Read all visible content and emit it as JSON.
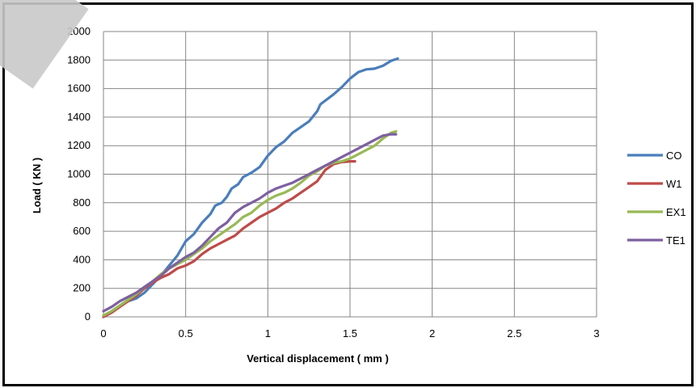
{
  "chart_data": {
    "type": "line",
    "xlabel": "Vertical displacement ( mm )",
    "ylabel": "Load ( KN )",
    "xlim": [
      0,
      3
    ],
    "ylim": [
      0,
      2000
    ],
    "xticks": [
      "0",
      "0.5",
      "1",
      "1.5",
      "2",
      "2.5",
      "3"
    ],
    "yticks": [
      "0",
      "200",
      "400",
      "600",
      "800",
      "1000",
      "1200",
      "1400",
      "1600",
      "1800",
      "2000"
    ],
    "grid": true,
    "legend_position": "right",
    "series": [
      {
        "name": "CO",
        "color": "#4a7ebb",
        "points": [
          [
            0,
            0
          ],
          [
            0.05,
            40
          ],
          [
            0.1,
            80
          ],
          [
            0.15,
            110
          ],
          [
            0.2,
            130
          ],
          [
            0.25,
            170
          ],
          [
            0.3,
            230
          ],
          [
            0.35,
            290
          ],
          [
            0.4,
            360
          ],
          [
            0.45,
            430
          ],
          [
            0.48,
            490
          ],
          [
            0.5,
            530
          ],
          [
            0.52,
            550
          ],
          [
            0.55,
            580
          ],
          [
            0.6,
            660
          ],
          [
            0.65,
            720
          ],
          [
            0.68,
            780
          ],
          [
            0.72,
            800
          ],
          [
            0.75,
            840
          ],
          [
            0.78,
            900
          ],
          [
            0.82,
            930
          ],
          [
            0.85,
            980
          ],
          [
            0.9,
            1010
          ],
          [
            0.95,
            1050
          ],
          [
            1.0,
            1130
          ],
          [
            1.05,
            1190
          ],
          [
            1.1,
            1230
          ],
          [
            1.15,
            1290
          ],
          [
            1.2,
            1330
          ],
          [
            1.25,
            1370
          ],
          [
            1.3,
            1440
          ],
          [
            1.32,
            1490
          ],
          [
            1.4,
            1560
          ],
          [
            1.45,
            1610
          ],
          [
            1.5,
            1670
          ],
          [
            1.55,
            1715
          ],
          [
            1.6,
            1735
          ],
          [
            1.65,
            1740
          ],
          [
            1.7,
            1760
          ],
          [
            1.75,
            1795
          ],
          [
            1.79,
            1810
          ]
        ]
      },
      {
        "name": "W1",
        "color": "#be4b48",
        "points": [
          [
            0,
            0
          ],
          [
            0.05,
            30
          ],
          [
            0.1,
            70
          ],
          [
            0.15,
            110
          ],
          [
            0.2,
            150
          ],
          [
            0.25,
            200
          ],
          [
            0.3,
            240
          ],
          [
            0.35,
            275
          ],
          [
            0.4,
            300
          ],
          [
            0.45,
            340
          ],
          [
            0.5,
            360
          ],
          [
            0.55,
            390
          ],
          [
            0.6,
            440
          ],
          [
            0.65,
            480
          ],
          [
            0.7,
            510
          ],
          [
            0.75,
            540
          ],
          [
            0.8,
            570
          ],
          [
            0.85,
            620
          ],
          [
            0.9,
            660
          ],
          [
            0.95,
            700
          ],
          [
            1.0,
            730
          ],
          [
            1.05,
            760
          ],
          [
            1.1,
            800
          ],
          [
            1.15,
            830
          ],
          [
            1.2,
            870
          ],
          [
            1.25,
            910
          ],
          [
            1.3,
            950
          ],
          [
            1.35,
            1030
          ],
          [
            1.4,
            1070
          ],
          [
            1.45,
            1085
          ],
          [
            1.5,
            1090
          ],
          [
            1.53,
            1090
          ]
        ]
      },
      {
        "name": "EX1",
        "color": "#98b954",
        "points": [
          [
            0,
            10
          ],
          [
            0.05,
            40
          ],
          [
            0.1,
            80
          ],
          [
            0.15,
            120
          ],
          [
            0.2,
            160
          ],
          [
            0.25,
            210
          ],
          [
            0.3,
            250
          ],
          [
            0.35,
            300
          ],
          [
            0.4,
            340
          ],
          [
            0.45,
            370
          ],
          [
            0.5,
            400
          ],
          [
            0.55,
            440
          ],
          [
            0.6,
            480
          ],
          [
            0.65,
            530
          ],
          [
            0.7,
            570
          ],
          [
            0.75,
            610
          ],
          [
            0.8,
            650
          ],
          [
            0.85,
            700
          ],
          [
            0.9,
            730
          ],
          [
            0.95,
            780
          ],
          [
            1.0,
            820
          ],
          [
            1.05,
            850
          ],
          [
            1.1,
            870
          ],
          [
            1.15,
            900
          ],
          [
            1.2,
            940
          ],
          [
            1.25,
            990
          ],
          [
            1.3,
            1020
          ],
          [
            1.35,
            1060
          ],
          [
            1.4,
            1080
          ],
          [
            1.45,
            1090
          ],
          [
            1.5,
            1110
          ],
          [
            1.55,
            1140
          ],
          [
            1.6,
            1170
          ],
          [
            1.65,
            1200
          ],
          [
            1.7,
            1250
          ],
          [
            1.75,
            1290
          ],
          [
            1.78,
            1300
          ]
        ]
      },
      {
        "name": "TE1",
        "color": "#7d60a0",
        "points": [
          [
            0,
            40
          ],
          [
            0.05,
            70
          ],
          [
            0.1,
            110
          ],
          [
            0.15,
            140
          ],
          [
            0.2,
            170
          ],
          [
            0.25,
            210
          ],
          [
            0.3,
            250
          ],
          [
            0.35,
            290
          ],
          [
            0.4,
            340
          ],
          [
            0.45,
            380
          ],
          [
            0.5,
            420
          ],
          [
            0.55,
            450
          ],
          [
            0.6,
            500
          ],
          [
            0.65,
            560
          ],
          [
            0.7,
            620
          ],
          [
            0.75,
            660
          ],
          [
            0.8,
            730
          ],
          [
            0.85,
            770
          ],
          [
            0.9,
            800
          ],
          [
            0.95,
            830
          ],
          [
            1.0,
            870
          ],
          [
            1.05,
            900
          ],
          [
            1.1,
            920
          ],
          [
            1.15,
            940
          ],
          [
            1.2,
            970
          ],
          [
            1.25,
            1000
          ],
          [
            1.3,
            1030
          ],
          [
            1.35,
            1060
          ],
          [
            1.4,
            1090
          ],
          [
            1.45,
            1120
          ],
          [
            1.5,
            1150
          ],
          [
            1.55,
            1180
          ],
          [
            1.6,
            1210
          ],
          [
            1.65,
            1240
          ],
          [
            1.7,
            1270
          ],
          [
            1.75,
            1280
          ],
          [
            1.78,
            1280
          ]
        ]
      }
    ]
  }
}
